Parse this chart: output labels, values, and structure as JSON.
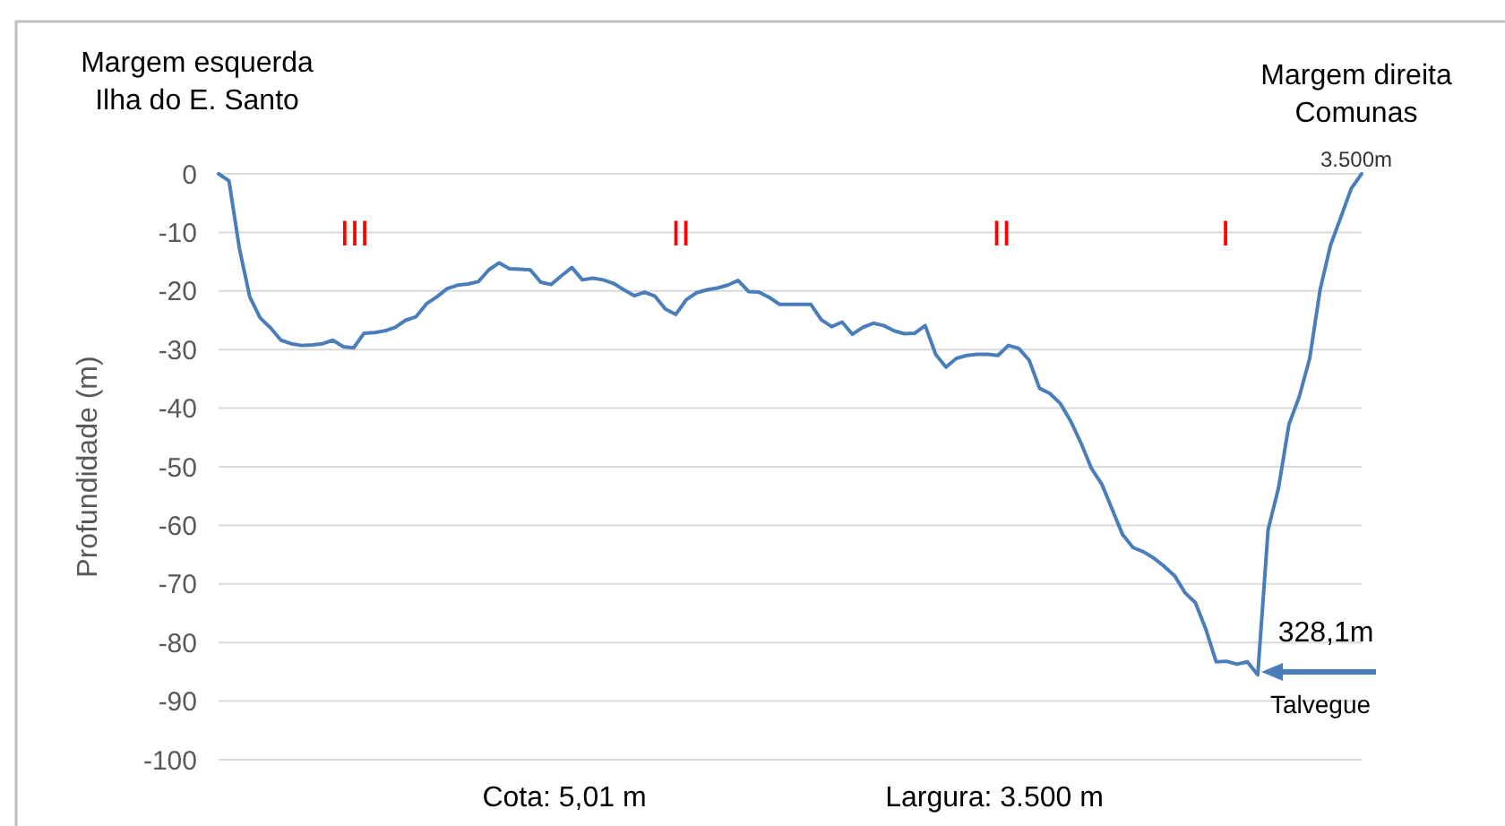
{
  "chart_data": {
    "type": "line",
    "ylabel": "Profundidade (m)",
    "categories": [
      null,
      null,
      null,
      null,
      null,
      null,
      null,
      null,
      null,
      null,
      null,
      null,
      null,
      null,
      null,
      null,
      null,
      null,
      null,
      null,
      null,
      null,
      null,
      null,
      null,
      null,
      null,
      null,
      null,
      null,
      null,
      null,
      null,
      null,
      null,
      null,
      null,
      null,
      null,
      null,
      null,
      null,
      null,
      null,
      null,
      null,
      null,
      null,
      null,
      null,
      null,
      null,
      null,
      null,
      null,
      null,
      null,
      null,
      null,
      null,
      null,
      null,
      null,
      null,
      null,
      null,
      null,
      null,
      null,
      null,
      null,
      null,
      null,
      null,
      null,
      null,
      null,
      null,
      null,
      null,
      null,
      null,
      null,
      null,
      null,
      null,
      null,
      null,
      null,
      null,
      null,
      null,
      null,
      null,
      null,
      null,
      null,
      null,
      null,
      null,
      null,
      null,
      null,
      null,
      null,
      null,
      null,
      null,
      null,
      null,
      null
    ],
    "series": [
      {
        "color": "#4a7ebb",
        "values": [
          0,
          -1.2,
          -12.7,
          -21,
          -24.6,
          -26.3,
          -28.4,
          -29,
          -29.3,
          -29.2,
          -29,
          -28.4,
          -29.5,
          -29.7,
          -27.2,
          -27.1,
          -26.8,
          -26.2,
          -25,
          -24.4,
          -22.2,
          -21,
          -19.6,
          -19,
          -18.8,
          -18.4,
          -16.4,
          -15.2,
          -16.2,
          -16.3,
          -16.4,
          -18.5,
          -18.9,
          -17.4,
          -16,
          -18.1,
          -17.8,
          -18.1,
          -18.7,
          -19.8,
          -20.8,
          -20.2,
          -20.9,
          -23.1,
          -24,
          -21.5,
          -20.3,
          -19.8,
          -19.5,
          -19,
          -18.2,
          -20.1,
          -20.2,
          -21.1,
          -22.3,
          -22.3,
          -22.3,
          -22.3,
          -24.9,
          -26.1,
          -25.3,
          -27.4,
          -26.2,
          -25.5,
          -25.9,
          -26.8,
          -27.3,
          -27.2,
          -25.9,
          -30.8,
          -33,
          -31.5,
          -31,
          -30.8,
          -30.8,
          -31,
          -29.3,
          -29.8,
          -31.8,
          -36.6,
          -37.5,
          -39.2,
          -42.2,
          -46,
          -50.3,
          -53,
          -57.3,
          -61.6,
          -63.8,
          -64.5,
          -65.6,
          -67,
          -68.6,
          -71.5,
          -73.2,
          -77.7,
          -83.3,
          -83.2,
          -83.7,
          -83.3,
          -85.5,
          -60.7,
          -53.6,
          -42.8,
          -38,
          -31.5,
          -19.8,
          -12.2,
          -7.4,
          -2.5,
          0
        ]
      }
    ],
    "ylim": [
      -100,
      0
    ],
    "yticks": [
      0,
      -10,
      -20,
      -30,
      -40,
      -50,
      -60,
      -70,
      -80,
      -90,
      -100
    ],
    "tick_labels": "y",
    "grid": "y",
    "marker": "none",
    "line_style": "solid",
    "annotations": [
      "III",
      "II",
      "II",
      "I",
      "3.500m",
      "328,1m",
      "Talvegue",
      "Margem esquerda\nIlha do E. Santo",
      "Margem direita\nComunas",
      "Cota: 5,01 m",
      "Largura: 3.500 m"
    ]
  }
}
